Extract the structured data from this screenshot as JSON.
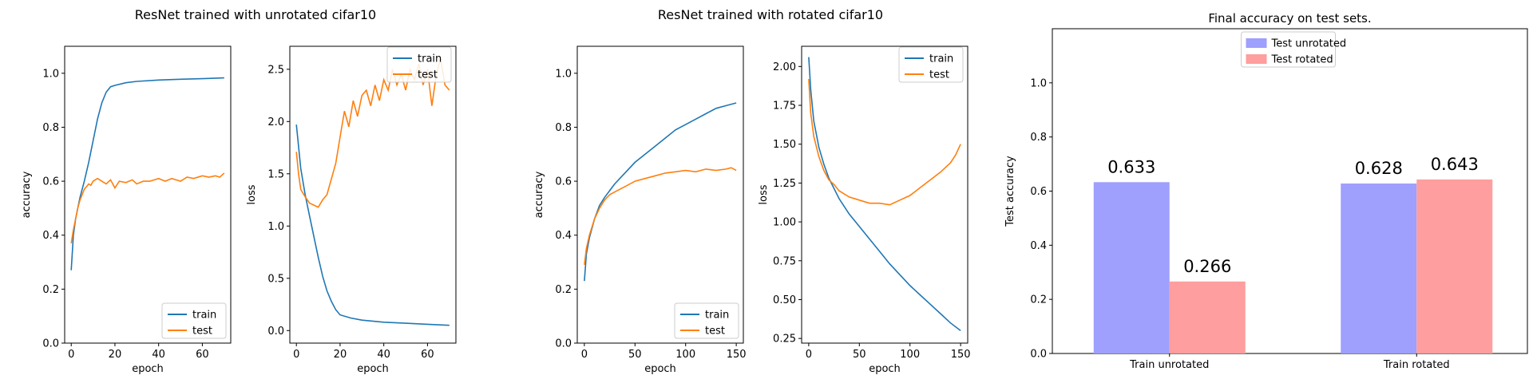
{
  "figure": {
    "suptitles": [
      "ResNet trained with unrotated cifar10",
      "ResNet trained with rotated cifar10"
    ]
  },
  "chart_data": [
    {
      "id": "acc-unrot",
      "type": "line",
      "xlabel": "epoch",
      "ylabel": "accuracy",
      "xlim": [
        -3,
        73
      ],
      "ylim": [
        0,
        1.1
      ],
      "xticks": [
        0,
        20,
        40,
        60
      ],
      "yticks": [
        0.0,
        0.2,
        0.4,
        0.6,
        0.8,
        1.0
      ],
      "legend": "lower right",
      "series": [
        {
          "name": "train",
          "color": "#1f77b4",
          "points": [
            [
              0,
              0.27
            ],
            [
              1,
              0.4
            ],
            [
              2,
              0.46
            ],
            [
              3,
              0.5
            ],
            [
              4,
              0.54
            ],
            [
              6,
              0.6
            ],
            [
              8,
              0.67
            ],
            [
              10,
              0.75
            ],
            [
              12,
              0.83
            ],
            [
              14,
              0.89
            ],
            [
              16,
              0.93
            ],
            [
              18,
              0.95
            ],
            [
              20,
              0.955
            ],
            [
              25,
              0.965
            ],
            [
              30,
              0.97
            ],
            [
              40,
              0.975
            ],
            [
              50,
              0.978
            ],
            [
              60,
              0.98
            ],
            [
              70,
              0.983
            ]
          ]
        },
        {
          "name": "test",
          "color": "#ff7f0e",
          "points": [
            [
              0,
              0.37
            ],
            [
              1,
              0.42
            ],
            [
              2,
              0.46
            ],
            [
              3,
              0.5
            ],
            [
              4,
              0.53
            ],
            [
              5,
              0.55
            ],
            [
              6,
              0.57
            ],
            [
              7,
              0.58
            ],
            [
              8,
              0.59
            ],
            [
              9,
              0.585
            ],
            [
              10,
              0.6
            ],
            [
              12,
              0.61
            ],
            [
              14,
              0.6
            ],
            [
              16,
              0.59
            ],
            [
              18,
              0.605
            ],
            [
              20,
              0.575
            ],
            [
              22,
              0.6
            ],
            [
              25,
              0.595
            ],
            [
              28,
              0.605
            ],
            [
              30,
              0.59
            ],
            [
              33,
              0.6
            ],
            [
              36,
              0.6
            ],
            [
              40,
              0.61
            ],
            [
              43,
              0.6
            ],
            [
              46,
              0.61
            ],
            [
              50,
              0.6
            ],
            [
              53,
              0.615
            ],
            [
              56,
              0.61
            ],
            [
              60,
              0.62
            ],
            [
              63,
              0.615
            ],
            [
              66,
              0.62
            ],
            [
              68,
              0.615
            ],
            [
              70,
              0.63
            ]
          ]
        }
      ]
    },
    {
      "id": "loss-unrot",
      "type": "line",
      "xlabel": "epoch",
      "ylabel": "loss",
      "xlim": [
        -3,
        73
      ],
      "ylim": [
        -0.12,
        2.72
      ],
      "xticks": [
        0,
        20,
        40,
        60
      ],
      "yticks": [
        0.0,
        0.5,
        1.0,
        1.5,
        2.0,
        2.5
      ],
      "legend": "upper right",
      "series": [
        {
          "name": "train",
          "color": "#1f77b4",
          "points": [
            [
              0,
              1.97
            ],
            [
              2,
              1.55
            ],
            [
              4,
              1.3
            ],
            [
              6,
              1.1
            ],
            [
              8,
              0.9
            ],
            [
              10,
              0.7
            ],
            [
              12,
              0.52
            ],
            [
              14,
              0.38
            ],
            [
              16,
              0.28
            ],
            [
              18,
              0.2
            ],
            [
              20,
              0.15
            ],
            [
              25,
              0.12
            ],
            [
              30,
              0.1
            ],
            [
              40,
              0.08
            ],
            [
              50,
              0.07
            ],
            [
              60,
              0.06
            ],
            [
              70,
              0.05
            ]
          ]
        },
        {
          "name": "test",
          "color": "#ff7f0e",
          "points": [
            [
              0,
              1.71
            ],
            [
              1,
              1.5
            ],
            [
              2,
              1.35
            ],
            [
              4,
              1.28
            ],
            [
              6,
              1.22
            ],
            [
              8,
              1.2
            ],
            [
              10,
              1.18
            ],
            [
              12,
              1.25
            ],
            [
              14,
              1.3
            ],
            [
              16,
              1.45
            ],
            [
              18,
              1.6
            ],
            [
              20,
              1.85
            ],
            [
              22,
              2.1
            ],
            [
              24,
              1.95
            ],
            [
              26,
              2.2
            ],
            [
              28,
              2.05
            ],
            [
              30,
              2.25
            ],
            [
              32,
              2.3
            ],
            [
              34,
              2.15
            ],
            [
              36,
              2.35
            ],
            [
              38,
              2.2
            ],
            [
              40,
              2.4
            ],
            [
              42,
              2.3
            ],
            [
              44,
              2.5
            ],
            [
              46,
              2.35
            ],
            [
              48,
              2.45
            ],
            [
              50,
              2.3
            ],
            [
              52,
              2.5
            ],
            [
              54,
              2.4
            ],
            [
              56,
              2.55
            ],
            [
              58,
              2.35
            ],
            [
              60,
              2.5
            ],
            [
              62,
              2.15
            ],
            [
              64,
              2.45
            ],
            [
              66,
              2.6
            ],
            [
              68,
              2.35
            ],
            [
              70,
              2.3
            ]
          ]
        }
      ]
    },
    {
      "id": "acc-rot",
      "type": "line",
      "xlabel": "epoch",
      "ylabel": "accuracy",
      "xlim": [
        -7,
        157
      ],
      "ylim": [
        0,
        1.1
      ],
      "xticks": [
        0,
        50,
        100,
        150
      ],
      "yticks": [
        0.0,
        0.2,
        0.4,
        0.6,
        0.8,
        1.0
      ],
      "legend": "lower right",
      "series": [
        {
          "name": "train",
          "color": "#1f77b4",
          "points": [
            [
              0,
              0.23
            ],
            [
              2,
              0.33
            ],
            [
              5,
              0.39
            ],
            [
              10,
              0.46
            ],
            [
              15,
              0.51
            ],
            [
              20,
              0.54
            ],
            [
              30,
              0.59
            ],
            [
              40,
              0.63
            ],
            [
              50,
              0.67
            ],
            [
              60,
              0.7
            ],
            [
              70,
              0.73
            ],
            [
              80,
              0.76
            ],
            [
              90,
              0.79
            ],
            [
              100,
              0.81
            ],
            [
              110,
              0.83
            ],
            [
              120,
              0.85
            ],
            [
              130,
              0.87
            ],
            [
              140,
              0.88
            ],
            [
              150,
              0.89
            ]
          ]
        },
        {
          "name": "test",
          "color": "#ff7f0e",
          "points": [
            [
              0,
              0.29
            ],
            [
              2,
              0.35
            ],
            [
              5,
              0.4
            ],
            [
              10,
              0.46
            ],
            [
              15,
              0.5
            ],
            [
              20,
              0.53
            ],
            [
              25,
              0.55
            ],
            [
              30,
              0.56
            ],
            [
              40,
              0.58
            ],
            [
              50,
              0.6
            ],
            [
              60,
              0.61
            ],
            [
              70,
              0.62
            ],
            [
              80,
              0.63
            ],
            [
              90,
              0.635
            ],
            [
              100,
              0.64
            ],
            [
              110,
              0.635
            ],
            [
              120,
              0.645
            ],
            [
              130,
              0.64
            ],
            [
              140,
              0.645
            ],
            [
              145,
              0.65
            ],
            [
              150,
              0.64
            ]
          ]
        }
      ]
    },
    {
      "id": "loss-rot",
      "type": "line",
      "xlabel": "epoch",
      "ylabel": "loss",
      "xlim": [
        -7,
        157
      ],
      "ylim": [
        0.22,
        2.13
      ],
      "xticks": [
        0,
        50,
        100,
        150
      ],
      "yticks": [
        0.25,
        0.5,
        0.75,
        1.0,
        1.25,
        1.5,
        1.75,
        2.0
      ],
      "legend": "upper right",
      "series": [
        {
          "name": "train",
          "color": "#1f77b4",
          "points": [
            [
              0,
              2.06
            ],
            [
              2,
              1.85
            ],
            [
              5,
              1.65
            ],
            [
              10,
              1.48
            ],
            [
              15,
              1.37
            ],
            [
              20,
              1.28
            ],
            [
              30,
              1.15
            ],
            [
              40,
              1.05
            ],
            [
              50,
              0.97
            ],
            [
              60,
              0.89
            ],
            [
              70,
              0.81
            ],
            [
              80,
              0.73
            ],
            [
              90,
              0.66
            ],
            [
              100,
              0.59
            ],
            [
              110,
              0.53
            ],
            [
              120,
              0.47
            ],
            [
              130,
              0.41
            ],
            [
              140,
              0.35
            ],
            [
              150,
              0.3
            ]
          ]
        },
        {
          "name": "test",
          "color": "#ff7f0e",
          "points": [
            [
              0,
              1.92
            ],
            [
              2,
              1.7
            ],
            [
              5,
              1.55
            ],
            [
              10,
              1.42
            ],
            [
              15,
              1.33
            ],
            [
              20,
              1.27
            ],
            [
              25,
              1.24
            ],
            [
              30,
              1.2
            ],
            [
              40,
              1.16
            ],
            [
              50,
              1.14
            ],
            [
              60,
              1.12
            ],
            [
              70,
              1.12
            ],
            [
              80,
              1.11
            ],
            [
              90,
              1.14
            ],
            [
              100,
              1.17
            ],
            [
              110,
              1.22
            ],
            [
              120,
              1.27
            ],
            [
              130,
              1.32
            ],
            [
              140,
              1.38
            ],
            [
              145,
              1.43
            ],
            [
              150,
              1.5
            ]
          ]
        }
      ]
    },
    {
      "id": "final-acc",
      "type": "bar",
      "title": "Final accuracy on test sets.",
      "xlabel": "",
      "ylabel": "Test accuracy",
      "ylim": [
        0,
        1.2
      ],
      "yticks": [
        0.0,
        0.2,
        0.4,
        0.6,
        0.8,
        1.0
      ],
      "legend": "upper center",
      "categories": [
        "Train unrotated",
        "Train rotated"
      ],
      "series": [
        {
          "name": "Test unrotated",
          "color": "#9f9ffe",
          "values": [
            0.633,
            0.628
          ]
        },
        {
          "name": "Test rotated",
          "color": "#fe9e9e",
          "values": [
            0.266,
            0.643
          ]
        }
      ]
    }
  ]
}
